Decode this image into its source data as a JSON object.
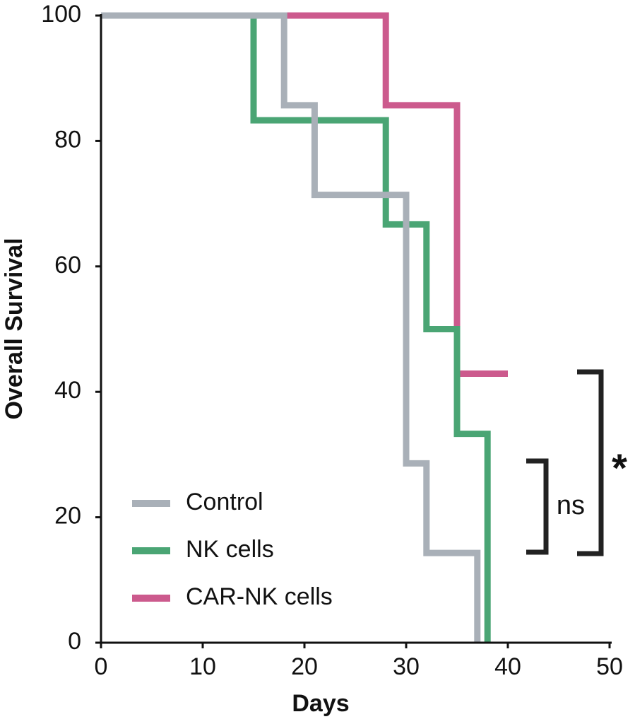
{
  "chart_data": {
    "type": "step",
    "x_label": "Days",
    "y_label": "Overall Survival",
    "xlim": [
      0,
      50
    ],
    "xticks": [
      0,
      10,
      20,
      30,
      40,
      50
    ],
    "ylim": [
      0,
      100
    ],
    "yticks": [
      0,
      20,
      40,
      60,
      80,
      100
    ],
    "legend": "lower left",
    "series": [
      {
        "name": "Control",
        "color": "#a9b0b8",
        "x": [
          0,
          18,
          21,
          30,
          32,
          37
        ],
        "values": [
          100,
          85.7,
          71.4,
          28.6,
          14.3,
          0
        ]
      },
      {
        "name": "NK cells",
        "color": "#4aa574",
        "x": [
          0,
          15,
          28,
          32,
          35,
          38
        ],
        "values": [
          100,
          83.3,
          66.7,
          50,
          33.3,
          0
        ]
      },
      {
        "name": "CAR-NK cells",
        "color": "#cc5a8d",
        "x": [
          0,
          28,
          35,
          40
        ],
        "values": [
          100,
          85.7,
          42.9,
          42.9
        ]
      }
    ],
    "annotations": [
      "ns",
      "*"
    ]
  }
}
